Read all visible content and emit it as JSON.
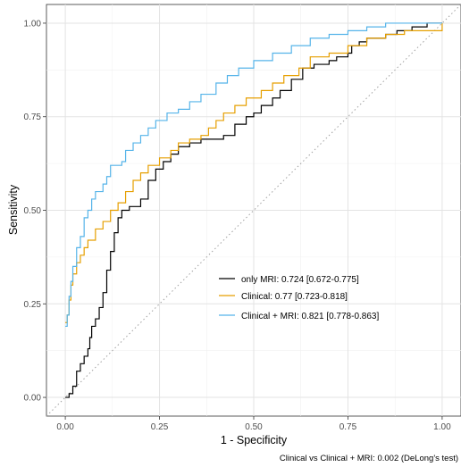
{
  "chart_data": {
    "type": "line",
    "title": "",
    "xlabel": "1 - Specificity",
    "ylabel": "Sensitivity",
    "xlim": [
      -0.05,
      1.05
    ],
    "ylim": [
      -0.05,
      1.05
    ],
    "x_ticks": [
      "0.00",
      "0.25",
      "0.50",
      "0.75",
      "1.00"
    ],
    "y_ticks": [
      "0.00",
      "0.25",
      "0.50",
      "0.75",
      "1.00"
    ],
    "grid": true,
    "legend_position": "inside-bottom-right",
    "caption": "Clinical vs Clinical + MRI:  0.002 (DeLong's test)",
    "reference_line": {
      "style": "dotted",
      "color": "#a0a0a0",
      "from": [
        0,
        0
      ],
      "to": [
        1,
        1
      ]
    },
    "series": [
      {
        "name": "only MRI:  0.724  [0.672-0.775]",
        "color": "#000000",
        "points": [
          [
            0,
            0
          ],
          [
            0.01,
            0.01
          ],
          [
            0.02,
            0.03
          ],
          [
            0.03,
            0.07
          ],
          [
            0.04,
            0.09
          ],
          [
            0.05,
            0.11
          ],
          [
            0.06,
            0.13
          ],
          [
            0.065,
            0.16
          ],
          [
            0.07,
            0.19
          ],
          [
            0.08,
            0.21
          ],
          [
            0.09,
            0.24
          ],
          [
            0.1,
            0.28
          ],
          [
            0.11,
            0.34
          ],
          [
            0.12,
            0.39
          ],
          [
            0.13,
            0.44
          ],
          [
            0.14,
            0.48
          ],
          [
            0.15,
            0.5
          ],
          [
            0.17,
            0.51
          ],
          [
            0.2,
            0.53
          ],
          [
            0.22,
            0.58
          ],
          [
            0.24,
            0.61
          ],
          [
            0.26,
            0.63
          ],
          [
            0.28,
            0.65
          ],
          [
            0.3,
            0.67
          ],
          [
            0.33,
            0.68
          ],
          [
            0.36,
            0.69
          ],
          [
            0.4,
            0.69
          ],
          [
            0.42,
            0.7
          ],
          [
            0.45,
            0.73
          ],
          [
            0.48,
            0.75
          ],
          [
            0.5,
            0.76
          ],
          [
            0.52,
            0.78
          ],
          [
            0.55,
            0.8
          ],
          [
            0.57,
            0.82
          ],
          [
            0.6,
            0.85
          ],
          [
            0.63,
            0.88
          ],
          [
            0.66,
            0.89
          ],
          [
            0.7,
            0.9
          ],
          [
            0.72,
            0.91
          ],
          [
            0.75,
            0.92
          ],
          [
            0.76,
            0.94
          ],
          [
            0.78,
            0.95
          ],
          [
            0.8,
            0.96
          ],
          [
            0.85,
            0.97
          ],
          [
            0.88,
            0.98
          ],
          [
            0.92,
            0.99
          ],
          [
            0.96,
            1.0
          ],
          [
            1.0,
            1.0
          ]
        ]
      },
      {
        "name": "Clinical:  0.77  [0.723-0.818]",
        "color": "#E69F00",
        "points": [
          [
            0,
            0.2
          ],
          [
            0.005,
            0.22
          ],
          [
            0.01,
            0.26
          ],
          [
            0.015,
            0.3
          ],
          [
            0.02,
            0.33
          ],
          [
            0.03,
            0.36
          ],
          [
            0.04,
            0.38
          ],
          [
            0.05,
            0.4
          ],
          [
            0.06,
            0.42
          ],
          [
            0.08,
            0.45
          ],
          [
            0.1,
            0.47
          ],
          [
            0.12,
            0.5
          ],
          [
            0.14,
            0.52
          ],
          [
            0.16,
            0.55
          ],
          [
            0.18,
            0.58
          ],
          [
            0.2,
            0.6
          ],
          [
            0.22,
            0.62
          ],
          [
            0.25,
            0.64
          ],
          [
            0.28,
            0.66
          ],
          [
            0.3,
            0.68
          ],
          [
            0.33,
            0.69
          ],
          [
            0.36,
            0.7
          ],
          [
            0.38,
            0.72
          ],
          [
            0.4,
            0.74
          ],
          [
            0.42,
            0.76
          ],
          [
            0.45,
            0.78
          ],
          [
            0.48,
            0.8
          ],
          [
            0.52,
            0.82
          ],
          [
            0.55,
            0.84
          ],
          [
            0.58,
            0.86
          ],
          [
            0.62,
            0.88
          ],
          [
            0.65,
            0.91
          ],
          [
            0.7,
            0.92
          ],
          [
            0.75,
            0.94
          ],
          [
            0.8,
            0.96
          ],
          [
            0.85,
            0.97
          ],
          [
            0.9,
            0.98
          ],
          [
            0.95,
            0.98
          ],
          [
            1.0,
            1.0
          ]
        ]
      },
      {
        "name": "Clinical + MRI:  0.821  [0.778-0.863]",
        "color": "#56B4E9",
        "points": [
          [
            0,
            0.19
          ],
          [
            0.005,
            0.22
          ],
          [
            0.01,
            0.27
          ],
          [
            0.015,
            0.31
          ],
          [
            0.02,
            0.35
          ],
          [
            0.03,
            0.4
          ],
          [
            0.04,
            0.43
          ],
          [
            0.05,
            0.48
          ],
          [
            0.06,
            0.5
          ],
          [
            0.07,
            0.53
          ],
          [
            0.08,
            0.55
          ],
          [
            0.1,
            0.57
          ],
          [
            0.11,
            0.59
          ],
          [
            0.12,
            0.62
          ],
          [
            0.15,
            0.63
          ],
          [
            0.16,
            0.66
          ],
          [
            0.18,
            0.68
          ],
          [
            0.2,
            0.7
          ],
          [
            0.22,
            0.72
          ],
          [
            0.24,
            0.74
          ],
          [
            0.27,
            0.76
          ],
          [
            0.3,
            0.77
          ],
          [
            0.33,
            0.79
          ],
          [
            0.36,
            0.81
          ],
          [
            0.4,
            0.84
          ],
          [
            0.43,
            0.86
          ],
          [
            0.46,
            0.88
          ],
          [
            0.5,
            0.9
          ],
          [
            0.55,
            0.92
          ],
          [
            0.6,
            0.94
          ],
          [
            0.65,
            0.96
          ],
          [
            0.7,
            0.97
          ],
          [
            0.75,
            0.98
          ],
          [
            0.8,
            0.99
          ],
          [
            0.85,
            1.0
          ],
          [
            0.9,
            1.0
          ],
          [
            1.0,
            1.0
          ]
        ]
      }
    ]
  }
}
